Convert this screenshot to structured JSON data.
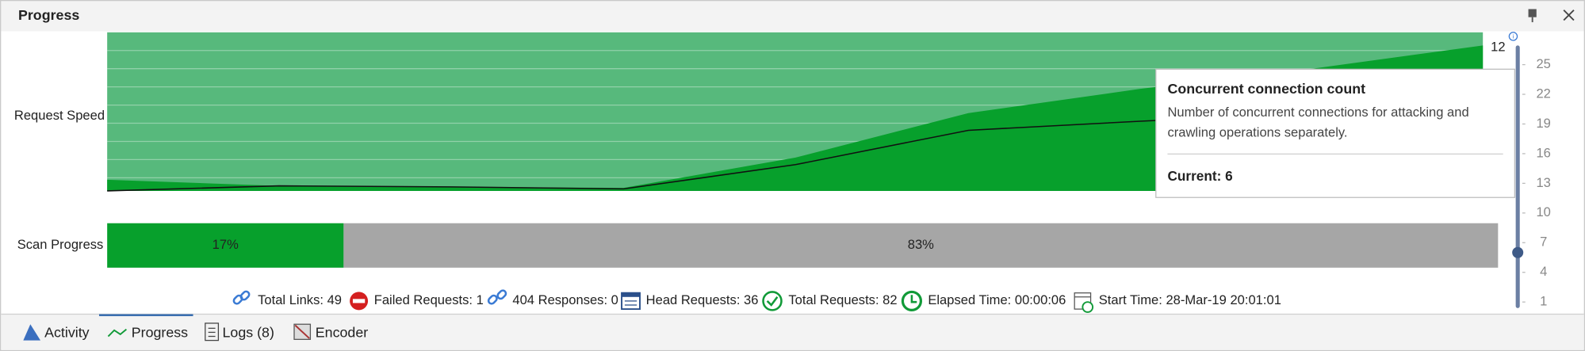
{
  "header": {
    "title": "Progress"
  },
  "chart": {
    "label": "Request Speed",
    "top_value": 12
  },
  "slider": {
    "ticks": [
      25,
      22,
      19,
      16,
      13,
      10,
      7,
      4,
      1
    ],
    "current": 6
  },
  "tooltip": {
    "title": "Concurrent connection count",
    "description_lines": [
      "Number of concurrent connections for attacking and",
      "crawling operations separately."
    ],
    "current_label": "Current:",
    "current": 6
  },
  "scan_progress": {
    "label": "Scan Progress",
    "segments": [
      {
        "value": 17,
        "label": "17%"
      },
      {
        "value": 83,
        "label": "83%"
      }
    ]
  },
  "stats": [
    {
      "label": "Total Links:",
      "value": 49
    },
    {
      "label": "Failed Requests:",
      "value": 1
    },
    {
      "label": "404 Responses:",
      "value": 0
    },
    {
      "label": "Head Requests:",
      "value": 36
    },
    {
      "label": "Total Requests:",
      "value": 82
    },
    {
      "label": "Elapsed Time:",
      "value": "00:00:06"
    },
    {
      "label": "Start Time:",
      "value": "28-Mar-19 20:01:01"
    }
  ],
  "tabs": [
    "Activity",
    "Progress",
    "Logs (8)",
    "Encoder"
  ]
}
